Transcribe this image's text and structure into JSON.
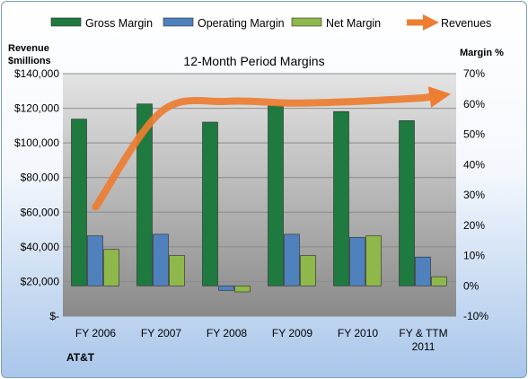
{
  "chart_data": {
    "type": "bar",
    "title": "12-Month Period Margins",
    "company": "AT&T",
    "ylabel_left": [
      "Revenue",
      "$millions"
    ],
    "ylabel_right": "Margin %",
    "categories": [
      [
        "FY 2006"
      ],
      [
        "FY 2007"
      ],
      [
        "FY 2008"
      ],
      [
        "FY 2009"
      ],
      [
        "FY 2010"
      ],
      [
        "FY & TTM",
        "2011"
      ]
    ],
    "left_axis": {
      "min": 0,
      "max": 140000,
      "step": 20000,
      "ticks": [
        "$-",
        "$20,000",
        "$40,000",
        "$60,000",
        "$80,000",
        "$100,000",
        "$120,000",
        "$140,000"
      ]
    },
    "right_axis": {
      "min": -10,
      "max": 70,
      "step": 10,
      "ticks": [
        "-10%",
        "0%",
        "10%",
        "20%",
        "30%",
        "40%",
        "50%",
        "60%",
        "70%"
      ]
    },
    "legend_position": "top",
    "series": [
      {
        "name": "Gross Margin",
        "kind": "bar",
        "axis": "right",
        "color": "#1f7a3f",
        "values": [
          55,
          60,
          54,
          59.5,
          57.5,
          54.5
        ]
      },
      {
        "name": "Operating Margin",
        "kind": "bar",
        "axis": "right",
        "color": "#4f81bd",
        "values": [
          16.5,
          17,
          -1.5,
          17,
          16,
          9.5
        ]
      },
      {
        "name": "Net Margin",
        "kind": "bar",
        "axis": "right",
        "color": "#8fb84b",
        "values": [
          12,
          10,
          -2,
          10,
          16.5,
          3
        ]
      },
      {
        "name": "Revenues",
        "kind": "line",
        "axis": "left",
        "color": "#ed7d31",
        "values": [
          63000,
          118000,
          124000,
          123000,
          124000,
          126000
        ]
      }
    ]
  }
}
